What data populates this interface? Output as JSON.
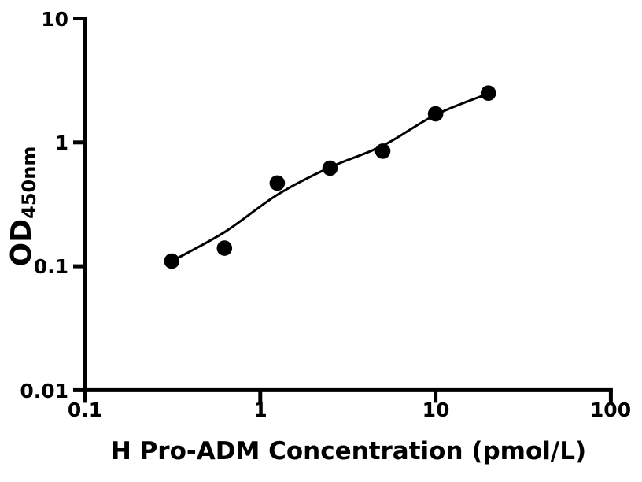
{
  "chart_data": {
    "type": "scatter",
    "title": "",
    "xlabel": "H Pro-ADM Concentration (pmol/L)",
    "ylabel_main": "OD",
    "ylabel_sub": "450nm",
    "x_scale": "log",
    "y_scale": "log",
    "xlim": [
      0.1,
      100
    ],
    "ylim": [
      0.01,
      10
    ],
    "x_ticks": [
      0.1,
      1,
      10,
      100
    ],
    "x_tick_labels": [
      "0.1",
      "1",
      "10",
      "100"
    ],
    "y_ticks": [
      10,
      1,
      0.1,
      0.01
    ],
    "y_tick_labels": [
      "10",
      "1",
      "0.1",
      "0.01"
    ],
    "grid": false,
    "legend": false,
    "points": {
      "x": [
        0.3125,
        0.625,
        1.25,
        2.5,
        5,
        10,
        20
      ],
      "y": [
        0.11,
        0.14,
        0.47,
        0.62,
        0.85,
        1.7,
        2.5
      ]
    },
    "fit_curve": [
      [
        0.3125,
        0.11
      ],
      [
        0.63,
        0.19
      ],
      [
        1.26,
        0.38
      ],
      [
        2.5,
        0.63
      ],
      [
        5.0,
        0.94
      ],
      [
        10.0,
        1.67
      ],
      [
        20.0,
        2.48
      ]
    ],
    "colors": {
      "points": "#000000",
      "line": "#000000",
      "axis": "#000000",
      "background": "#ffffff"
    }
  }
}
